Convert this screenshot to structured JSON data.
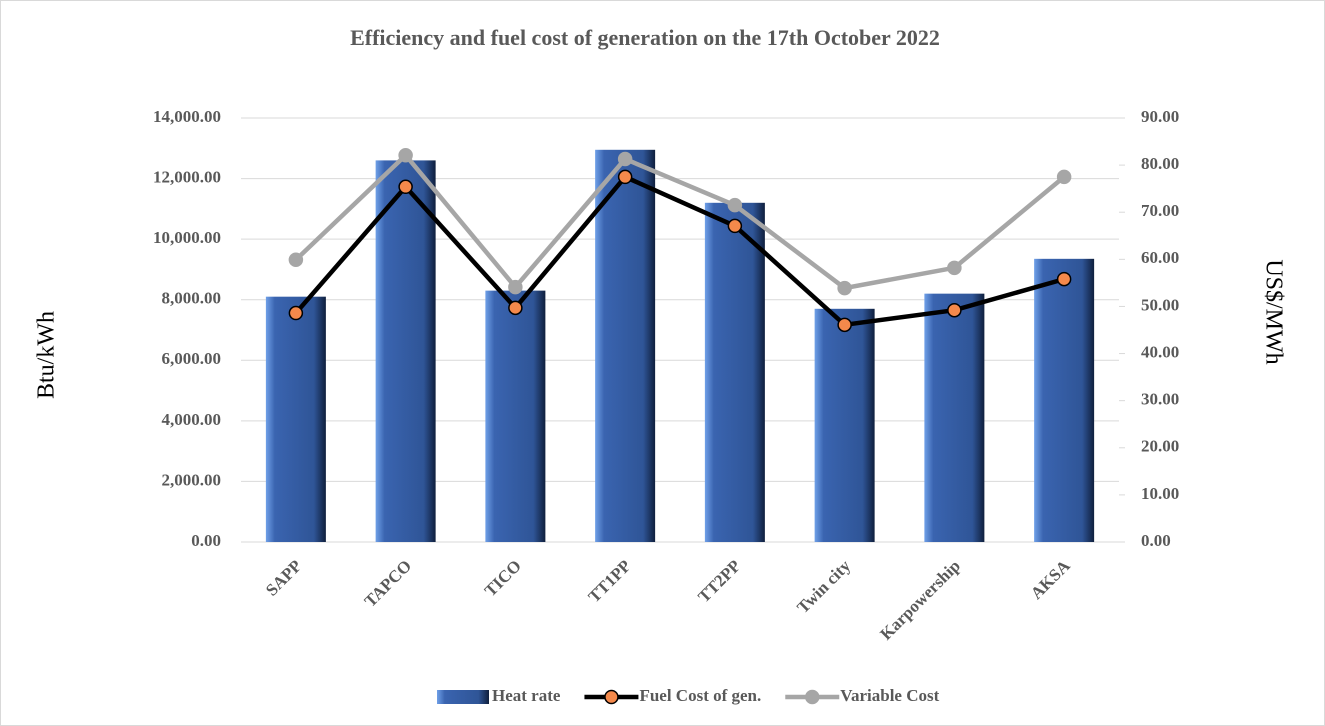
{
  "chart_data": {
    "type": "bar",
    "title": "Efficiency and fuel cost of generation on the 17th October 2022",
    "y_label": "Btu/kWh",
    "y2_label": "US$/MWh",
    "categories": [
      "SAPP",
      "TAPCO",
      "TICO",
      "TT1PP",
      "TT2PP",
      "Twin city",
      "Karpowership",
      "AKSA"
    ],
    "series": [
      {
        "name": "Heat rate",
        "type": "bar",
        "axis": "y",
        "color": "#2f5597",
        "values": [
          8100,
          12600,
          8300,
          12950,
          11200,
          7700,
          8200,
          9350
        ]
      },
      {
        "name": "Fuel Cost of gen.",
        "type": "line",
        "axis": "y2",
        "color": "#000000",
        "marker_color": "#f4894b",
        "values": [
          48.6,
          75.4,
          49.7,
          77.5,
          67.1,
          46.1,
          49.2,
          55.8
        ]
      },
      {
        "name": "Variable Cost",
        "type": "line",
        "axis": "y2",
        "color": "#a6a6a6",
        "marker_color": "#a6a6a6",
        "values": [
          59.9,
          82.1,
          54.1,
          81.3,
          71.5,
          53.9,
          58.2,
          77.5
        ]
      }
    ],
    "ylim": [
      0,
      14000
    ],
    "yticks": [
      {
        "value": 0,
        "label": "0.00"
      },
      {
        "value": 2000,
        "label": "2,000.00"
      },
      {
        "value": 4000,
        "label": "4,000.00"
      },
      {
        "value": 6000,
        "label": "6,000.00"
      },
      {
        "value": 8000,
        "label": "8,000.00"
      },
      {
        "value": 10000,
        "label": "10,000.00"
      },
      {
        "value": 12000,
        "label": "12,000.00"
      },
      {
        "value": 14000,
        "label": "14,000.00"
      }
    ],
    "y2lim": [
      0,
      90
    ],
    "y2ticks": [
      {
        "value": 0,
        "label": "0.00"
      },
      {
        "value": 10,
        "label": "10.00"
      },
      {
        "value": 20,
        "label": "20.00"
      },
      {
        "value": 30,
        "label": "30.00"
      },
      {
        "value": 40,
        "label": "40.00"
      },
      {
        "value": 50,
        "label": "50.00"
      },
      {
        "value": 60,
        "label": "60.00"
      },
      {
        "value": 70,
        "label": "70.00"
      },
      {
        "value": 80,
        "label": "80.00"
      },
      {
        "value": 90,
        "label": "90.00"
      }
    ],
    "grid": true,
    "legend": "bottom"
  }
}
